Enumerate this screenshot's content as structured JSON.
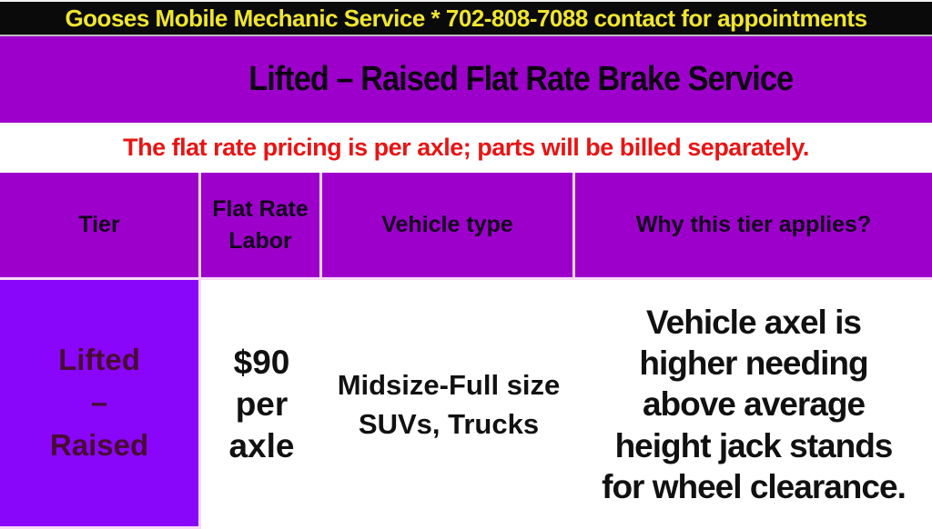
{
  "topbar": {
    "text": "Gooses Mobile Mechanic Service * 702-808-7088 contact for appointments"
  },
  "banner": {
    "title": "Lifted – Raised Flat Rate Brake Service"
  },
  "notice": {
    "text": "The flat rate pricing is per axle; parts will be billed separately."
  },
  "table": {
    "headers": [
      "Tier",
      "Flat Rate\nLabor",
      "Vehicle type",
      "Why this tier applies?"
    ],
    "rows": [
      {
        "tier": "Lifted\n–\nRaised",
        "flat_rate_labor": "$90\nper\naxle",
        "vehicle_type": "Midsize-Full size\nSUVs, Trucks",
        "why": "Vehicle axel is\nhigher needing\nabove average\nheight jack stands\nfor wheel clearance."
      }
    ]
  },
  "colors": {
    "topbar_bg": "#0a0a0a",
    "topbar_text": "#f0e62e",
    "purple": "#9e00cc",
    "violet": "#8a06fa",
    "divider": "#f9d9f6",
    "notice_red": "#e81414",
    "tier_text": "#470c33",
    "body_text": "#111111"
  }
}
